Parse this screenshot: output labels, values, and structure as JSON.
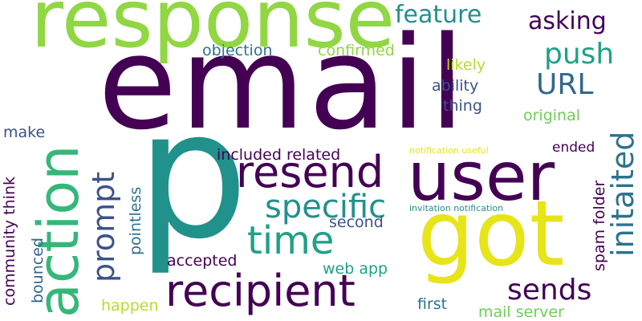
{
  "palette": {
    "dark_purple": "#440154",
    "indigo": "#3b528b",
    "blue": "#31688e",
    "teal_blue": "#2c728e",
    "teal": "#21918c",
    "green_teal": "#1fa187",
    "green": "#35b779",
    "light_green": "#6ece58",
    "lime": "#90d743",
    "yellow_green": "#b5de2b",
    "yellow": "#e7e419"
  },
  "words": [
    {
      "text": "email"
    },
    {
      "text": "p"
    },
    {
      "text": "response"
    },
    {
      "text": "user"
    },
    {
      "text": "got"
    },
    {
      "text": "action"
    },
    {
      "text": "recipient"
    },
    {
      "text": "resend"
    },
    {
      "text": "time"
    },
    {
      "text": "initaited"
    },
    {
      "text": "prompt"
    },
    {
      "text": "specific"
    },
    {
      "text": "sends"
    },
    {
      "text": "push"
    },
    {
      "text": "URL"
    },
    {
      "text": "feature"
    },
    {
      "text": "asking"
    },
    {
      "text": "objection"
    },
    {
      "text": "confirmed"
    },
    {
      "text": "likely"
    },
    {
      "text": "ability"
    },
    {
      "text": "thing"
    },
    {
      "text": "original"
    },
    {
      "text": "make"
    },
    {
      "text": "included related"
    },
    {
      "text": "ended"
    },
    {
      "text": "notification useful"
    },
    {
      "text": "community think"
    },
    {
      "text": "pointless"
    },
    {
      "text": "second"
    },
    {
      "text": "invitation notification"
    },
    {
      "text": "spam folder"
    },
    {
      "text": "accepted"
    },
    {
      "text": "web app"
    },
    {
      "text": "bounced"
    },
    {
      "text": "happen"
    },
    {
      "text": "first"
    },
    {
      "text": "mail server"
    }
  ]
}
